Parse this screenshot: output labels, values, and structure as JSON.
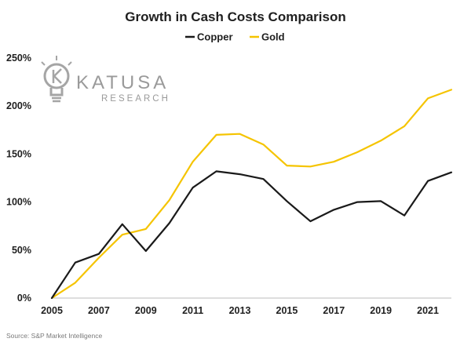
{
  "chart_data": {
    "type": "line",
    "title": "Growth in Cash Costs Comparison",
    "xlabel": "",
    "ylabel": "",
    "x": [
      2005,
      2006,
      2007,
      2008,
      2009,
      2010,
      2011,
      2012,
      2013,
      2014,
      2015,
      2016,
      2017,
      2018,
      2019,
      2020,
      2021,
      2022
    ],
    "x_tick_labels": [
      "2005",
      "2007",
      "2009",
      "2011",
      "2013",
      "2015",
      "2017",
      "2019",
      "2021"
    ],
    "y_tick_labels": [
      "0%",
      "50%",
      "100%",
      "150%",
      "200%",
      "250%"
    ],
    "y_ticks": [
      0,
      50,
      100,
      150,
      200,
      250
    ],
    "ylim": [
      0,
      250
    ],
    "xlim": [
      2005,
      2022
    ],
    "grid": false,
    "legend_position": "top-center",
    "series": [
      {
        "name": "Copper",
        "color": "#1a1a1a",
        "values": [
          0,
          37,
          46,
          77,
          49,
          78,
          115,
          132,
          129,
          124,
          101,
          80,
          92,
          100,
          101,
          86,
          122,
          131
        ]
      },
      {
        "name": "Gold",
        "color": "#f5c400",
        "values": [
          0,
          16,
          42,
          66,
          72,
          102,
          142,
          170,
          171,
          160,
          138,
          137,
          142,
          152,
          164,
          179,
          208,
          217
        ]
      }
    ]
  },
  "watermark": {
    "brand": "KATUSA",
    "sub": "RESEARCH",
    "icon": "lightbulb-k-icon"
  },
  "source": "Source: S&P Market Intelligence"
}
